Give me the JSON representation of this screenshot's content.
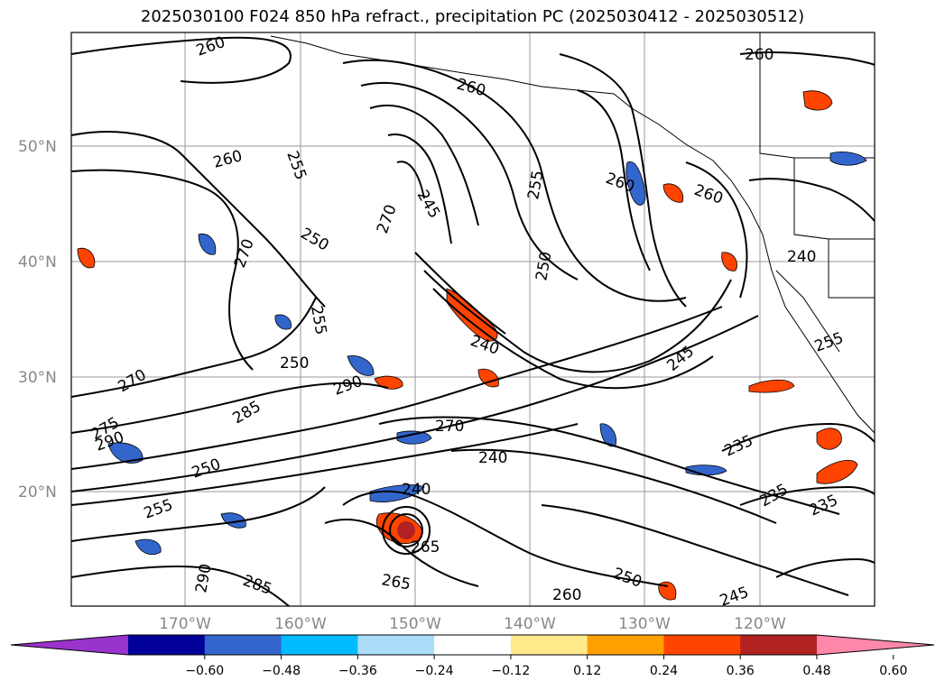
{
  "title": "2025030100 F024 850 hPa refract., precipitation PC (2025030412 - 2025030512)",
  "lat_labels": [
    "50°N",
    "40°N",
    "30°N",
    "20°N"
  ],
  "lon_labels": [
    "170°W",
    "160°W",
    "150°W",
    "140°W",
    "130°W",
    "120°W"
  ],
  "contour_labels": [
    "260",
    "260",
    "260",
    "260",
    "255",
    "245",
    "260",
    "270",
    "250",
    "255",
    "255",
    "250",
    "260",
    "270",
    "250",
    "290",
    "270",
    "275",
    "285",
    "290",
    "270",
    "240",
    "245",
    "240",
    "240",
    "235",
    "235",
    "235",
    "250",
    "255",
    "255",
    "250",
    "265",
    "240",
    "245",
    "265",
    "260",
    "285",
    "290"
  ],
  "colorbar": {
    "colors": [
      "#9933cc",
      "#000099",
      "#3366cc",
      "#00bbff",
      "#aaddf8",
      "#ffffff",
      "#ffe98a",
      "#ff9f00",
      "#ff4400",
      "#b22222",
      "#ff88aa"
    ],
    "tick_labels": [
      "−0.60",
      "−0.48",
      "−0.36",
      "−0.24",
      "−0.12",
      "0.12",
      "0.24",
      "0.36",
      "0.48",
      "0.60"
    ]
  }
}
